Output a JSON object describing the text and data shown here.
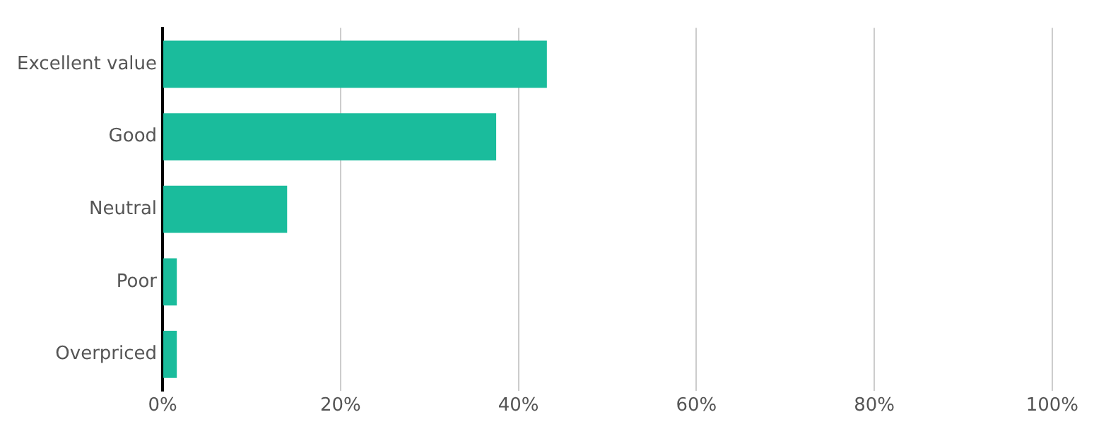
{
  "chart_data": {
    "type": "bar",
    "orientation": "horizontal",
    "categories": [
      "Excellent value",
      "Good",
      "Neutral",
      "Poor",
      "Overpriced"
    ],
    "values": [
      43.2,
      37.5,
      14,
      1.6,
      1.6
    ],
    "color": "#1abc9c",
    "xlim": [
      0,
      100
    ],
    "xticks": [
      {
        "value": 0,
        "label": "0%"
      },
      {
        "value": 20,
        "label": "20%"
      },
      {
        "value": 40,
        "label": "40%"
      },
      {
        "value": 60,
        "label": "60%"
      },
      {
        "value": 80,
        "label": "80%"
      },
      {
        "value": 100,
        "label": "100%"
      }
    ],
    "grid": "x",
    "legend": false
  }
}
